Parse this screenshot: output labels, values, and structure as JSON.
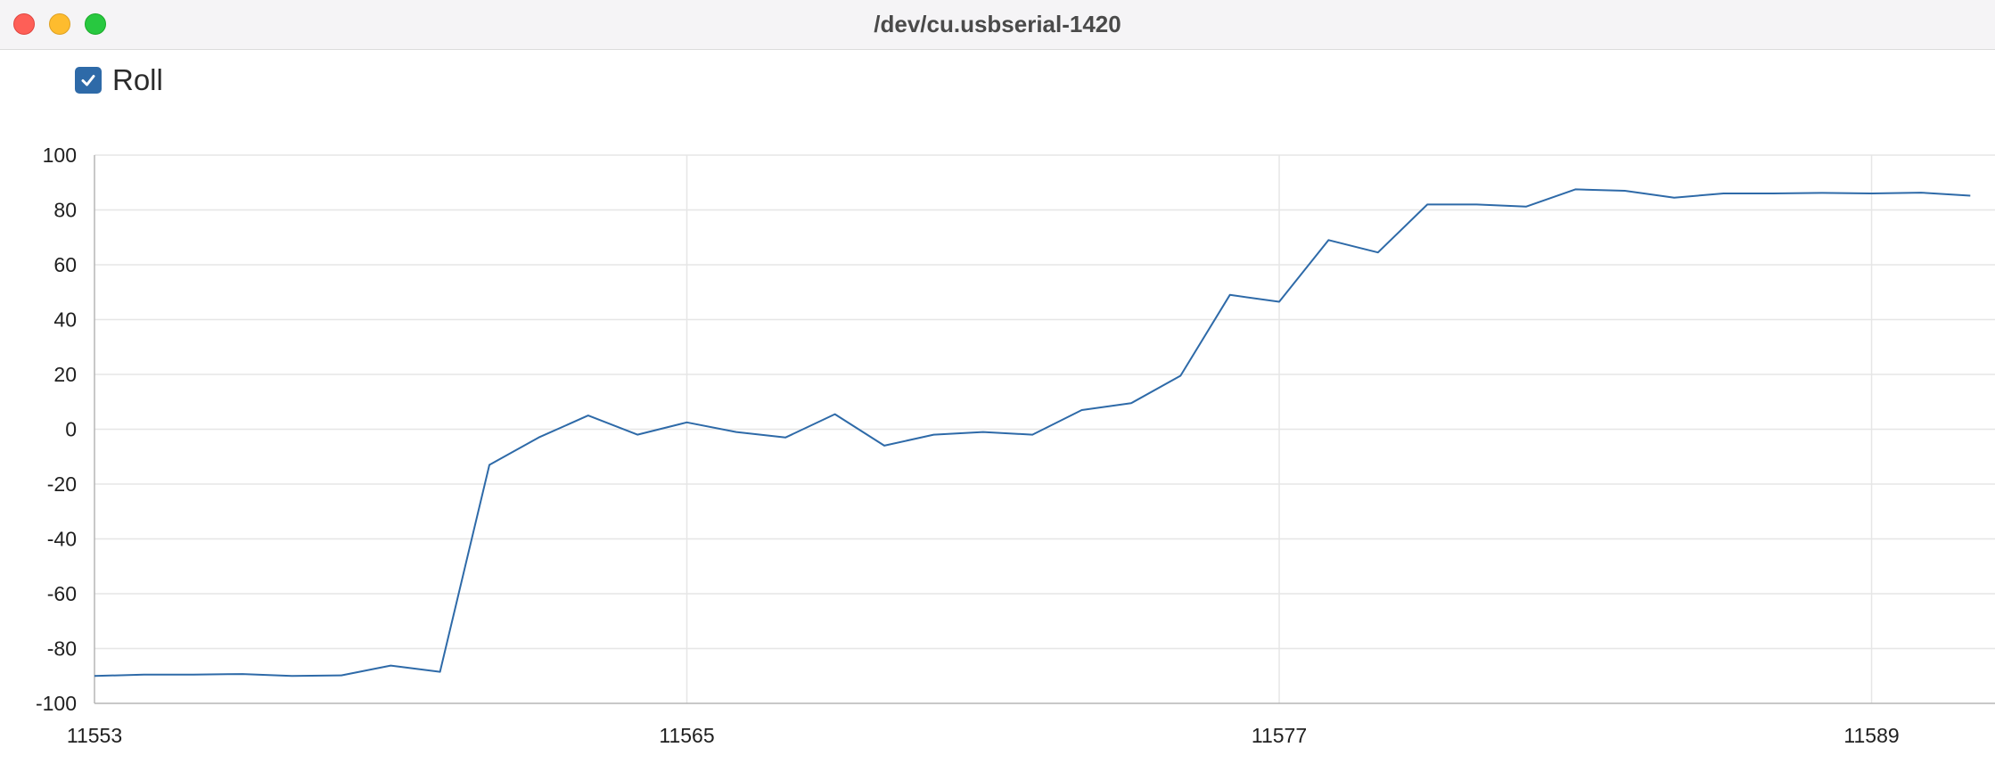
{
  "window": {
    "title": "/dev/cu.usbserial-1420"
  },
  "legend": {
    "items": [
      {
        "label": "Roll",
        "checked": true,
        "color": "#2e6aa8"
      }
    ]
  },
  "chart_data": {
    "type": "line",
    "title": "",
    "xlabel": "",
    "ylabel": "",
    "xlim": [
      11553,
      11591.5
    ],
    "ylim": [
      -100,
      100
    ],
    "x_ticks": [
      11553,
      11565,
      11577,
      11589
    ],
    "y_ticks": [
      100,
      80,
      60,
      40,
      20,
      0,
      -20,
      -40,
      -60,
      -80,
      -100
    ],
    "grid": true,
    "legend_position": "top-left",
    "series": [
      {
        "name": "Roll",
        "color": "#2e6aa8",
        "x": [
          11553,
          11554,
          11555,
          11556,
          11557,
          11558,
          11559,
          11560,
          11561,
          11562,
          11563,
          11564,
          11565,
          11566,
          11567,
          11568,
          11569,
          11570,
          11571,
          11572,
          11573,
          11574,
          11575,
          11576,
          11577,
          11578,
          11579,
          11580,
          11581,
          11582,
          11583,
          11584,
          11585,
          11586,
          11587,
          11588,
          11589,
          11590,
          11591
        ],
        "values": [
          -90,
          -89.5,
          -89.5,
          -89.3,
          -90,
          -89.8,
          -86.2,
          -88.5,
          -13,
          -3,
          5,
          -2,
          2.5,
          -1,
          -3,
          5.5,
          -6,
          -2,
          -1,
          -2,
          7,
          9.5,
          19.5,
          49,
          46.5,
          69,
          64.5,
          82,
          82,
          81.2,
          87.5,
          87,
          84.5,
          86,
          86,
          86.2,
          86,
          86.3,
          85.2
        ]
      }
    ]
  }
}
